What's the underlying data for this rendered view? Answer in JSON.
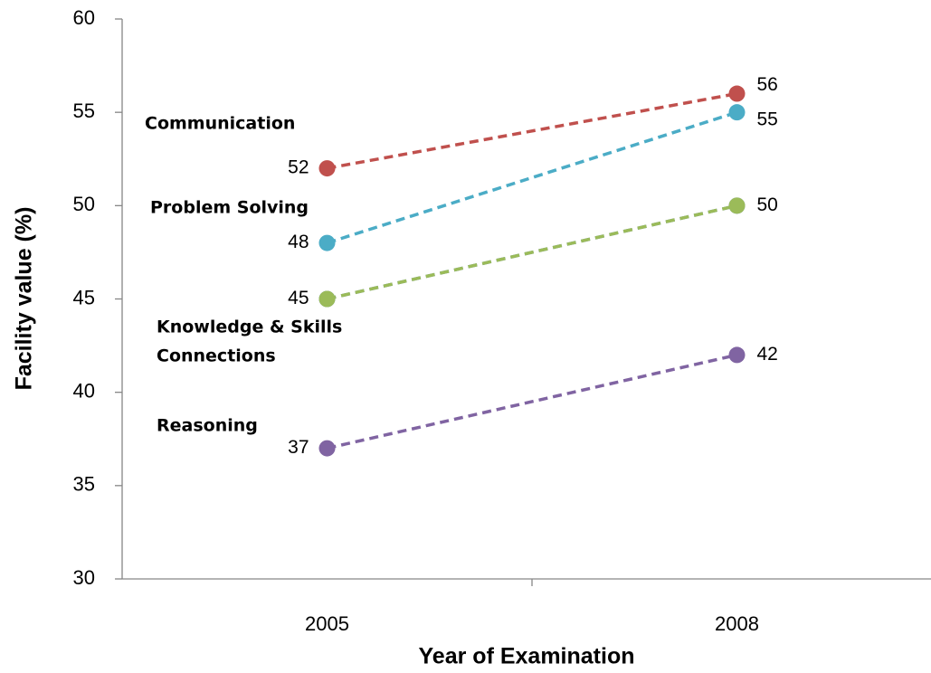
{
  "chart_data": {
    "type": "line",
    "x_label": "Year of Examination",
    "y_label": "Facility value (%)",
    "categories": [
      "2005",
      "2008"
    ],
    "ylim": [
      30,
      60
    ],
    "yticks": [
      30,
      35,
      40,
      45,
      50,
      55,
      60
    ],
    "dashed": true,
    "series": [
      {
        "name": "Communication",
        "color": "#c0504d",
        "values": [
          52,
          56
        ],
        "data_labels": true
      },
      {
        "name": "Problem Solving",
        "color": "#4bacc6",
        "values": [
          48,
          55
        ],
        "data_labels": true
      },
      {
        "name": "Knowledge & Skills",
        "color": "#4f81bd",
        "values": [
          45,
          50
        ],
        "data_labels": false
      },
      {
        "name": "Connections",
        "color": "#9bbb59",
        "values": [
          45,
          50
        ],
        "data_labels": true
      },
      {
        "name": "Reasoning",
        "color": "#8064a2",
        "values": [
          37,
          42
        ],
        "data_labels": true
      }
    ]
  }
}
